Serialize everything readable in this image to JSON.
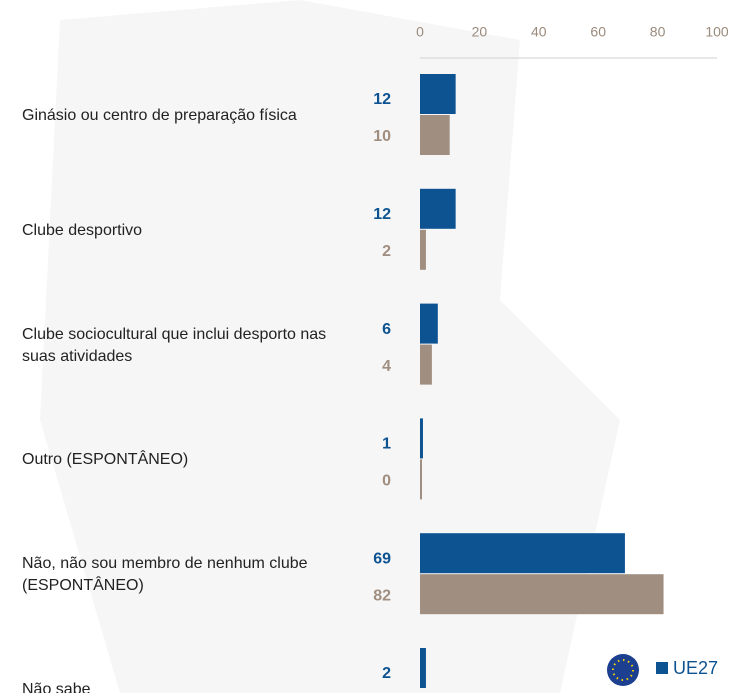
{
  "chart_data": {
    "type": "hbar",
    "categories": [
      "Ginásio ou centro de preparação física",
      "Clube desportivo",
      "Clube sociocultural que inclui desporto nas suas atividades",
      "Outro (ESPONTÂNEO)",
      "Não, não sou membro de nenhum clube (ESPONTÂNEO)",
      "Não sabe"
    ],
    "series": [
      {
        "name": "UE27",
        "color": "#0d5392",
        "values": [
          12,
          12,
          6,
          1,
          69,
          2
        ]
      },
      {
        "color": "#a08e80",
        "values": [
          10,
          2,
          4,
          0,
          82,
          null
        ]
      }
    ],
    "xlim": [
      0,
      100
    ],
    "xticks": [
      0,
      20,
      40,
      60,
      80,
      100
    ]
  }
}
